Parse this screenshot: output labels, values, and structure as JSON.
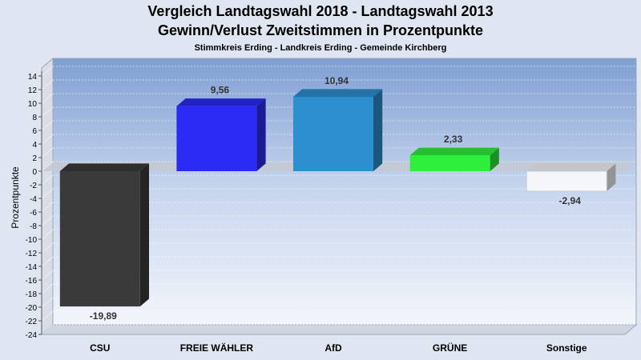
{
  "header": {
    "title_line1": "Vergleich Landtagswahl 2018 - Landtagswahl 2013",
    "title_line2": "Gewinn/Verlust Zweitstimmen in Prozentpunkte",
    "subtitle": "Stimmkreis Erding - Landkreis Erding - Gemeinde Kirchberg"
  },
  "chart_data": {
    "type": "bar",
    "title": "Vergleich Landtagswahl 2018 - Landtagswahl 2013 Gewinn/Verlust Zweitstimmen in Prozentpunkte",
    "subtitle": "Stimmkreis Erding - Landkreis Erding - Gemeinde Kirchberg",
    "ylabel": "Prozentpunkte",
    "xlabel": "",
    "categories": [
      "CSU",
      "FREIE WÄHLER",
      "AfD",
      "GRÜNE",
      "Sonstige"
    ],
    "values": [
      -19.89,
      9.56,
      10.94,
      2.33,
      -2.94
    ],
    "value_labels": [
      "-19,89",
      "9,56",
      "10,94",
      "2,33",
      "-2,94"
    ],
    "colors": [
      "#3a3a3a",
      "#2b2bf5",
      "#2e8fd0",
      "#2ef03a",
      "#f4f6fa"
    ],
    "ylim": [
      -24,
      14
    ],
    "yticks": [
      14,
      12,
      10,
      8,
      6,
      4,
      2,
      0,
      -2,
      -4,
      -6,
      -8,
      -10,
      -12,
      -14,
      -16,
      -18,
      -20,
      -22,
      -24
    ],
    "grid": true,
    "legend": "none"
  }
}
